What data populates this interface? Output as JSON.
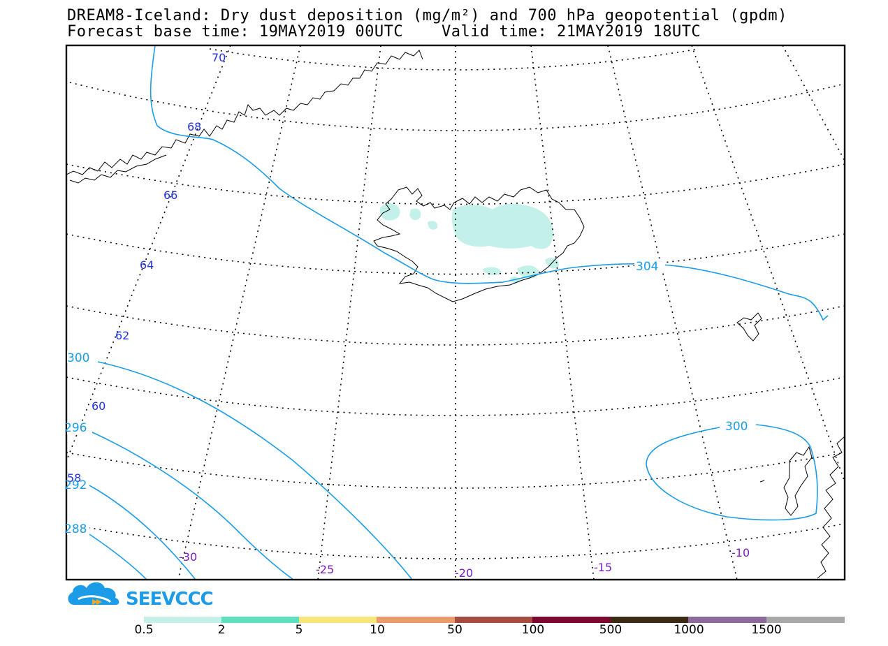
{
  "header": {
    "title_line1": "DREAM8-Iceland: Dry dust deposition (mg/m²) and 700 hPa geopotential (gpdm)",
    "title_line2": "Forecast base time: 19MAY2019 00UTC    Valid time: 21MAY2019 18UTC"
  },
  "map": {
    "latitude_labels": [
      "70",
      "68",
      "66",
      "64",
      "62",
      "60",
      "58"
    ],
    "longitude_labels": [
      "-30",
      "-25",
      "-20",
      "-15",
      "-10"
    ],
    "geopotential_contour_labels": [
      "304",
      "300",
      "300",
      "296",
      "292",
      "288"
    ],
    "colors": {
      "frame": "#000000",
      "coastline": "#000000",
      "graticule": "#000000",
      "geopotential_contour": "#1c9ce6",
      "latitude_label": "#2233dd",
      "longitude_label": "#7a1bbf",
      "dust_lowest_class": "#c4f0ea"
    }
  },
  "logo": {
    "text": "SEEVCCC",
    "icon": "cloud-icon",
    "color": "#1c9ce6"
  },
  "colorbar": {
    "colors": [
      "#c4f0ea",
      "#5ee0c0",
      "#f8e67a",
      "#ec9c6c",
      "#a84c40",
      "#7c0830",
      "#3c2a14",
      "#8c6a9c",
      "#a8a8a8"
    ],
    "labels": [
      "0.5",
      "2",
      "5",
      "10",
      "50",
      "100",
      "500",
      "1000",
      "1500"
    ]
  }
}
